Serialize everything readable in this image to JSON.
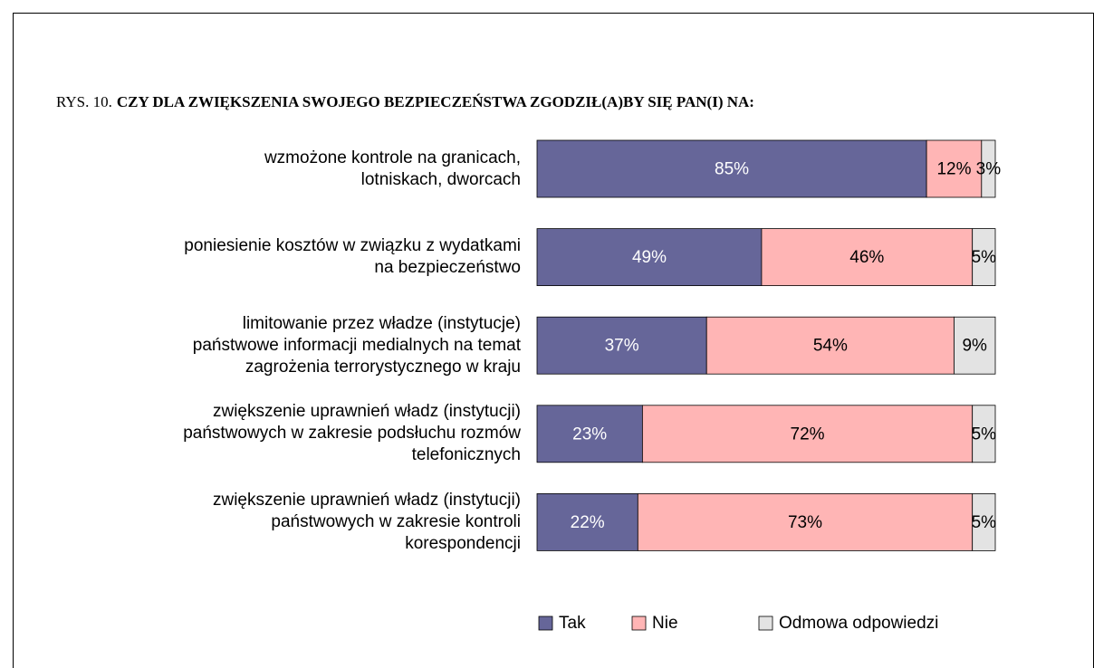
{
  "chart_data": {
    "type": "stacked_barh",
    "figure_label": "RYS. 10.",
    "title": "CZY DLA ZWIĘKSZENIA SWOJEGO BEZPIECZEŃSTWA ZGODZIŁ(A)BY SIĘ PAN(I) NA:",
    "categories": [
      "wzmożone kontrole na granicach,\nlotniskach, dworcach",
      "poniesienie kosztów w związku z wydatkami\nna bezpieczeństwo",
      "limitowanie przez władze (instytucje)\npaństwowe informacji medialnych na temat\nzagrożenia terrorystycznego w kraju",
      "zwiększenie uprawnień władz (instytucji)\npaństwowych w zakresie podsłuchu rozmów\ntelefonicznych",
      "zwiększenie uprawnień władz (instytucji)\npaństwowych w zakresie kontroli\nkorespondencji"
    ],
    "xlim": [
      0,
      100
    ],
    "series": [
      {
        "name": "Tak",
        "color": "#666699",
        "label_color": "#ffffff",
        "values": [
          85,
          49,
          37,
          23,
          22
        ],
        "value_labels": [
          "85%",
          "49%",
          "37%",
          "23%",
          "22%"
        ]
      },
      {
        "name": "Nie",
        "color": "#ffb5b5",
        "label_color": "#000000",
        "values": [
          12,
          46,
          54,
          72,
          73
        ],
        "value_labels": [
          "12%",
          "46%",
          "54%",
          "72%",
          "73%"
        ]
      },
      {
        "name": "Odmowa odpowiedzi",
        "color": "#e3e3e3",
        "label_color": "#000000",
        "values": [
          3,
          5,
          9,
          5,
          5
        ],
        "value_labels": [
          "3%",
          "5%",
          "9%",
          "5%",
          "5%"
        ]
      }
    ]
  }
}
